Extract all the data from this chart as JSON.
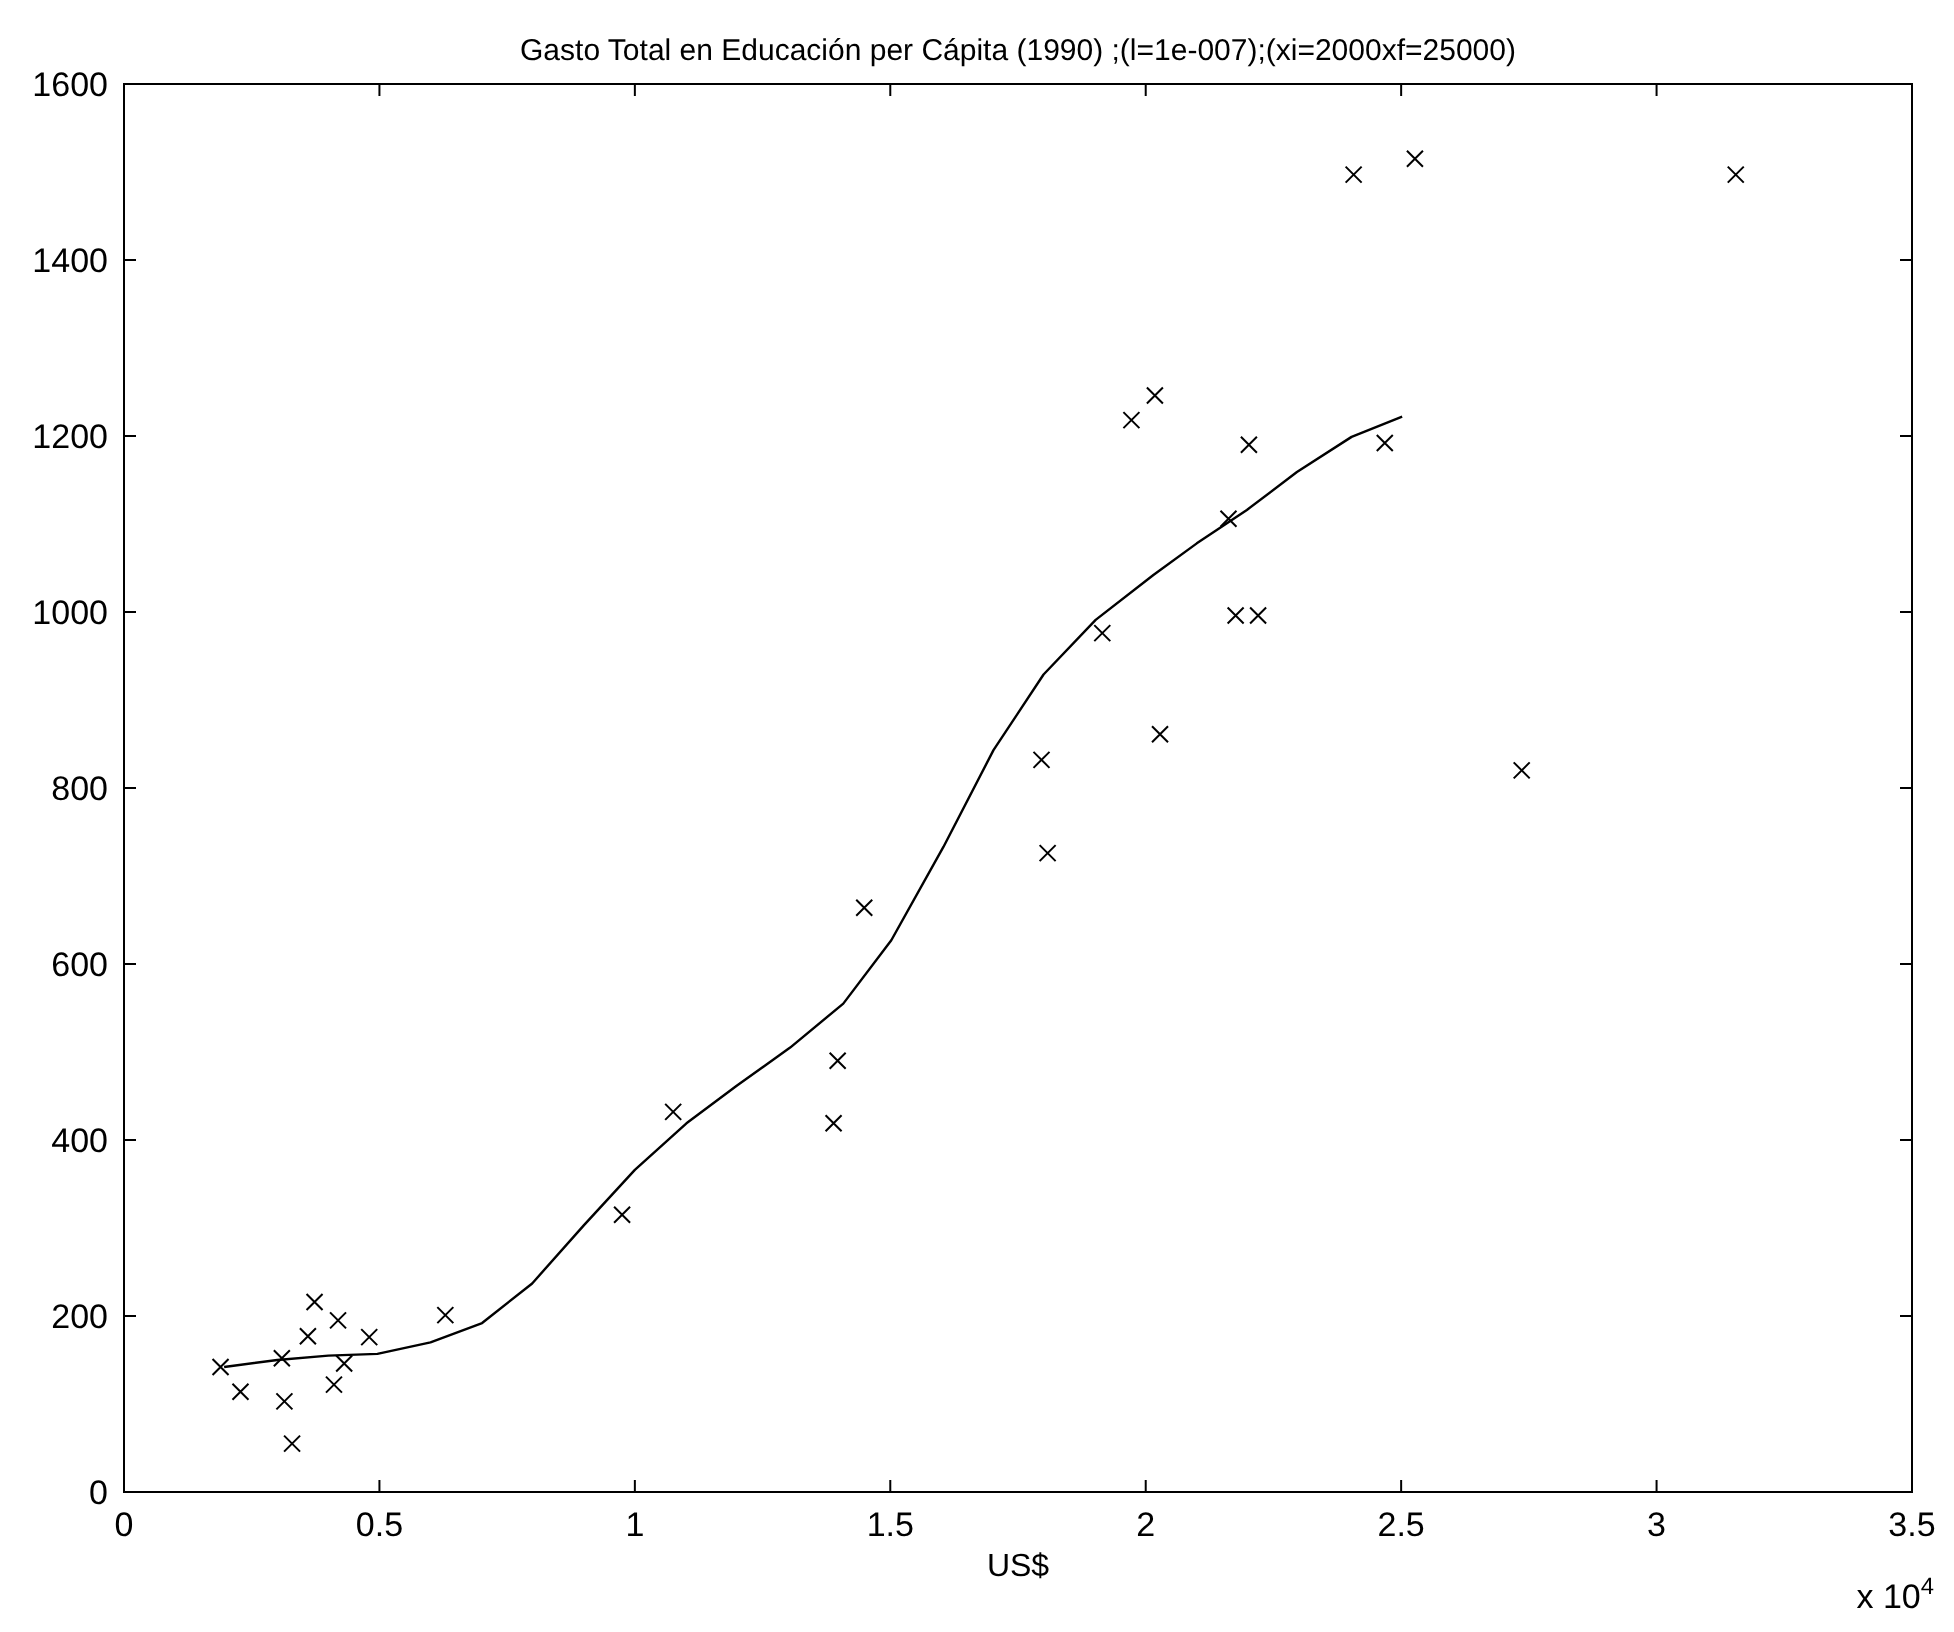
{
  "chart_data": {
    "type": "scatter",
    "title": "Gasto Total en Educación per Cápita (1990) ;(l=1e-007);(xi=2000xf=25000)",
    "xlabel": "US$",
    "annotations": [
      "x 10$^{4}$"
    ],
    "xlim": [
      0,
      3.5
    ],
    "xticks": [
      0,
      0.5,
      1,
      1.5,
      2,
      2.5,
      3,
      3.5
    ],
    "ylim": [
      0,
      1600
    ],
    "yticks": [
      0,
      200,
      400,
      600,
      800,
      1000,
      1200,
      1400,
      1600
    ],
    "grid": false,
    "series": [
      {
        "color": "#000000",
        "marker": "cross",
        "x": [
          0.189,
          0.228,
          0.309,
          0.314,
          0.329,
          0.36,
          0.373,
          0.419,
          0.411,
          0.431,
          0.48,
          0.629,
          0.975,
          1.075,
          1.389,
          1.397,
          1.449,
          1.808,
          1.796,
          2.736,
          1.915,
          2.028,
          1.972,
          2.018,
          2.202,
          2.162,
          2.176,
          2.22,
          2.468,
          2.407,
          2.527,
          3.155
        ],
        "values": [
          142,
          114,
          152,
          103,
          55,
          177,
          216,
          195,
          122,
          146,
          176,
          201,
          315,
          432,
          419,
          490,
          664,
          726,
          832,
          820,
          976,
          861,
          1218,
          1246,
          1190,
          1106,
          996,
          996,
          1192,
          1497,
          1515,
          1497
        ]
      },
      {
        "type": "line",
        "color": "#000000",
        "marker": "none",
        "line_style": "solid",
        "x": [
          0.196,
          0.3,
          0.4,
          0.496,
          0.6,
          0.701,
          0.799,
          0.9,
          1.0,
          1.101,
          1.2,
          1.304,
          1.408,
          1.502,
          1.604,
          1.702,
          1.8,
          1.902,
          2.015,
          2.1,
          2.198,
          2.296,
          2.403,
          2.502
        ],
        "values": [
          142,
          150,
          155,
          157,
          170,
          192,
          237,
          303,
          366,
          419,
          462,
          505,
          555,
          627,
          733,
          843,
          929,
          991,
          1042,
          1078,
          1116,
          1159,
          1199,
          1222
        ]
      }
    ]
  }
}
